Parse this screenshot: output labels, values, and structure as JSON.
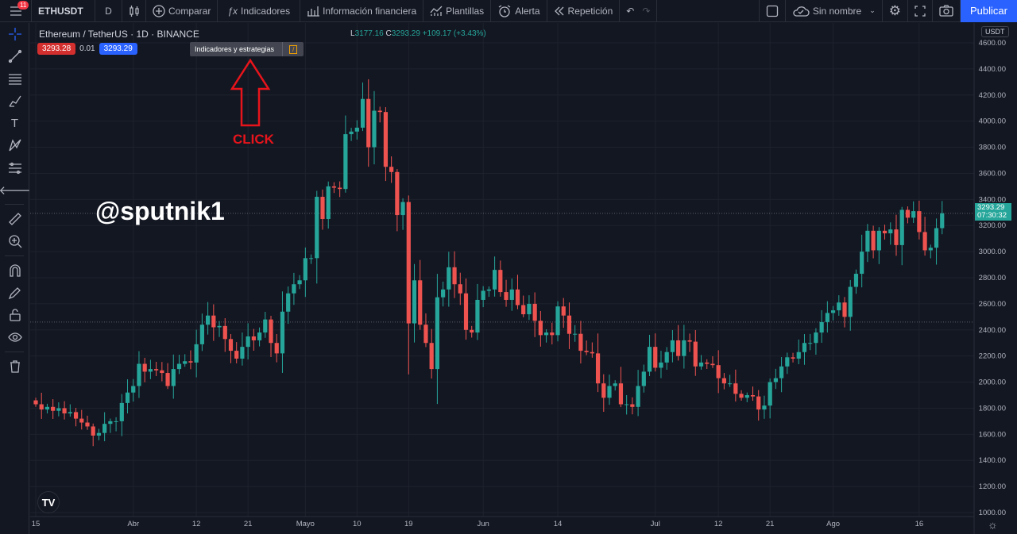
{
  "topbar": {
    "notifications": "11",
    "symbol": "ETHUSDT",
    "interval": "D",
    "compare": "Comparar",
    "indicators": "Indicadores",
    "financials": "Información financiera",
    "templates": "Plantillas",
    "alert": "Alerta",
    "replay": "Repetición",
    "layout_name": "Sin nombre",
    "publish": "Publicar"
  },
  "tooltip": {
    "text": "Indicadores y estrategias",
    "shortcut": "/"
  },
  "legend": {
    "title": "Ethereum / TetherUS · 1D · BINANCE",
    "low_label": "L",
    "low": "3177.16",
    "close_label": "C",
    "close": "3293.29",
    "change": "+109.17 (+3.43%)",
    "bid": "3293.28",
    "spread": "0.01",
    "ask": "3293.29"
  },
  "annotations": {
    "watermark": "@sputnik1",
    "click": "CLICK"
  },
  "price_axis": {
    "currency": "USDT",
    "last_price": "3293.29",
    "countdown": "07:30:32"
  },
  "colors": {
    "up": "#26a69a",
    "down": "#ef5350",
    "accent": "#2962ff",
    "annotation": "#e8141b"
  },
  "chart_data": {
    "type": "candlestick",
    "title": "Ethereum / TetherUS · 1D · BINANCE",
    "ylim": [
      1000,
      4600
    ],
    "yticks": [
      "4600.00",
      "4400.00",
      "4200.00",
      "4000.00",
      "3800.00",
      "3600.00",
      "3400.00",
      "3200.00",
      "3000.00",
      "2800.00",
      "2600.00",
      "2400.00",
      "2200.00",
      "2000.00",
      "1800.00",
      "1600.00",
      "1400.00",
      "1200.00",
      "1000.00"
    ],
    "xticks": [
      {
        "label": "15",
        "day": 0
      },
      {
        "label": "Abr",
        "day": 17
      },
      {
        "label": "12",
        "day": 28
      },
      {
        "label": "21",
        "day": 37
      },
      {
        "label": "Mayo",
        "day": 47
      },
      {
        "label": "10",
        "day": 56
      },
      {
        "label": "19",
        "day": 65
      },
      {
        "label": "Jun",
        "day": 78
      },
      {
        "label": "14",
        "day": 91
      },
      {
        "label": "Jul",
        "day": 108
      },
      {
        "label": "12",
        "day": 119
      },
      {
        "label": "21",
        "day": 128
      },
      {
        "label": "Ago",
        "day": 139
      },
      {
        "label": "16",
        "day": 154
      }
    ],
    "first_open": 1860,
    "closes": [
      1830,
      1790,
      1810,
      1780,
      1800,
      1760,
      1770,
      1720,
      1690,
      1660,
      1590,
      1610,
      1680,
      1700,
      1700,
      1840,
      1920,
      1970,
      2140,
      2080,
      2100,
      2090,
      2070,
      1970,
      2100,
      2140,
      2160,
      2150,
      2290,
      2440,
      2510,
      2420,
      2430,
      2330,
      2240,
      2180,
      2270,
      2350,
      2320,
      2380,
      2480,
      2300,
      2220,
      2540,
      2680,
      2750,
      2780,
      2950,
      2950,
      3420,
      3250,
      3500,
      3490,
      3480,
      3900,
      3920,
      3950,
      4170,
      3800,
      4080,
      4070,
      3650,
      3610,
      3280,
      3380,
      2450,
      2780,
      2440,
      2300,
      2100,
      2650,
      2710,
      2880,
      2750,
      2680,
      2400,
      2380,
      2630,
      2700,
      2710,
      2860,
      2690,
      2630,
      2710,
      2590,
      2520,
      2600,
      2470,
      2360,
      2380,
      2360,
      2580,
      2510,
      2370,
      2370,
      2240,
      2230,
      2220,
      1990,
      1880,
      1970,
      1990,
      1830,
      1830,
      1810,
      1970,
      2080,
      2270,
      2110,
      2150,
      2230,
      2320,
      2200,
      2320,
      2310,
      2120,
      2150,
      2140,
      2130,
      2030,
      1990,
      1990,
      1910,
      1880,
      1900,
      1890,
      1790,
      1820,
      2000,
      2030,
      2120,
      2190,
      2180,
      2230,
      2300,
      2300,
      2380,
      2460,
      2530,
      2550,
      2610,
      2500,
      2730,
      2830,
      3000,
      3160,
      3010,
      3160,
      3140,
      3170,
      3050,
      3320,
      3260,
      3310,
      3150,
      3010,
      3030,
      3180,
      3293.29
    ],
    "reference_lines": [
      3293.29,
      2460
    ]
  }
}
